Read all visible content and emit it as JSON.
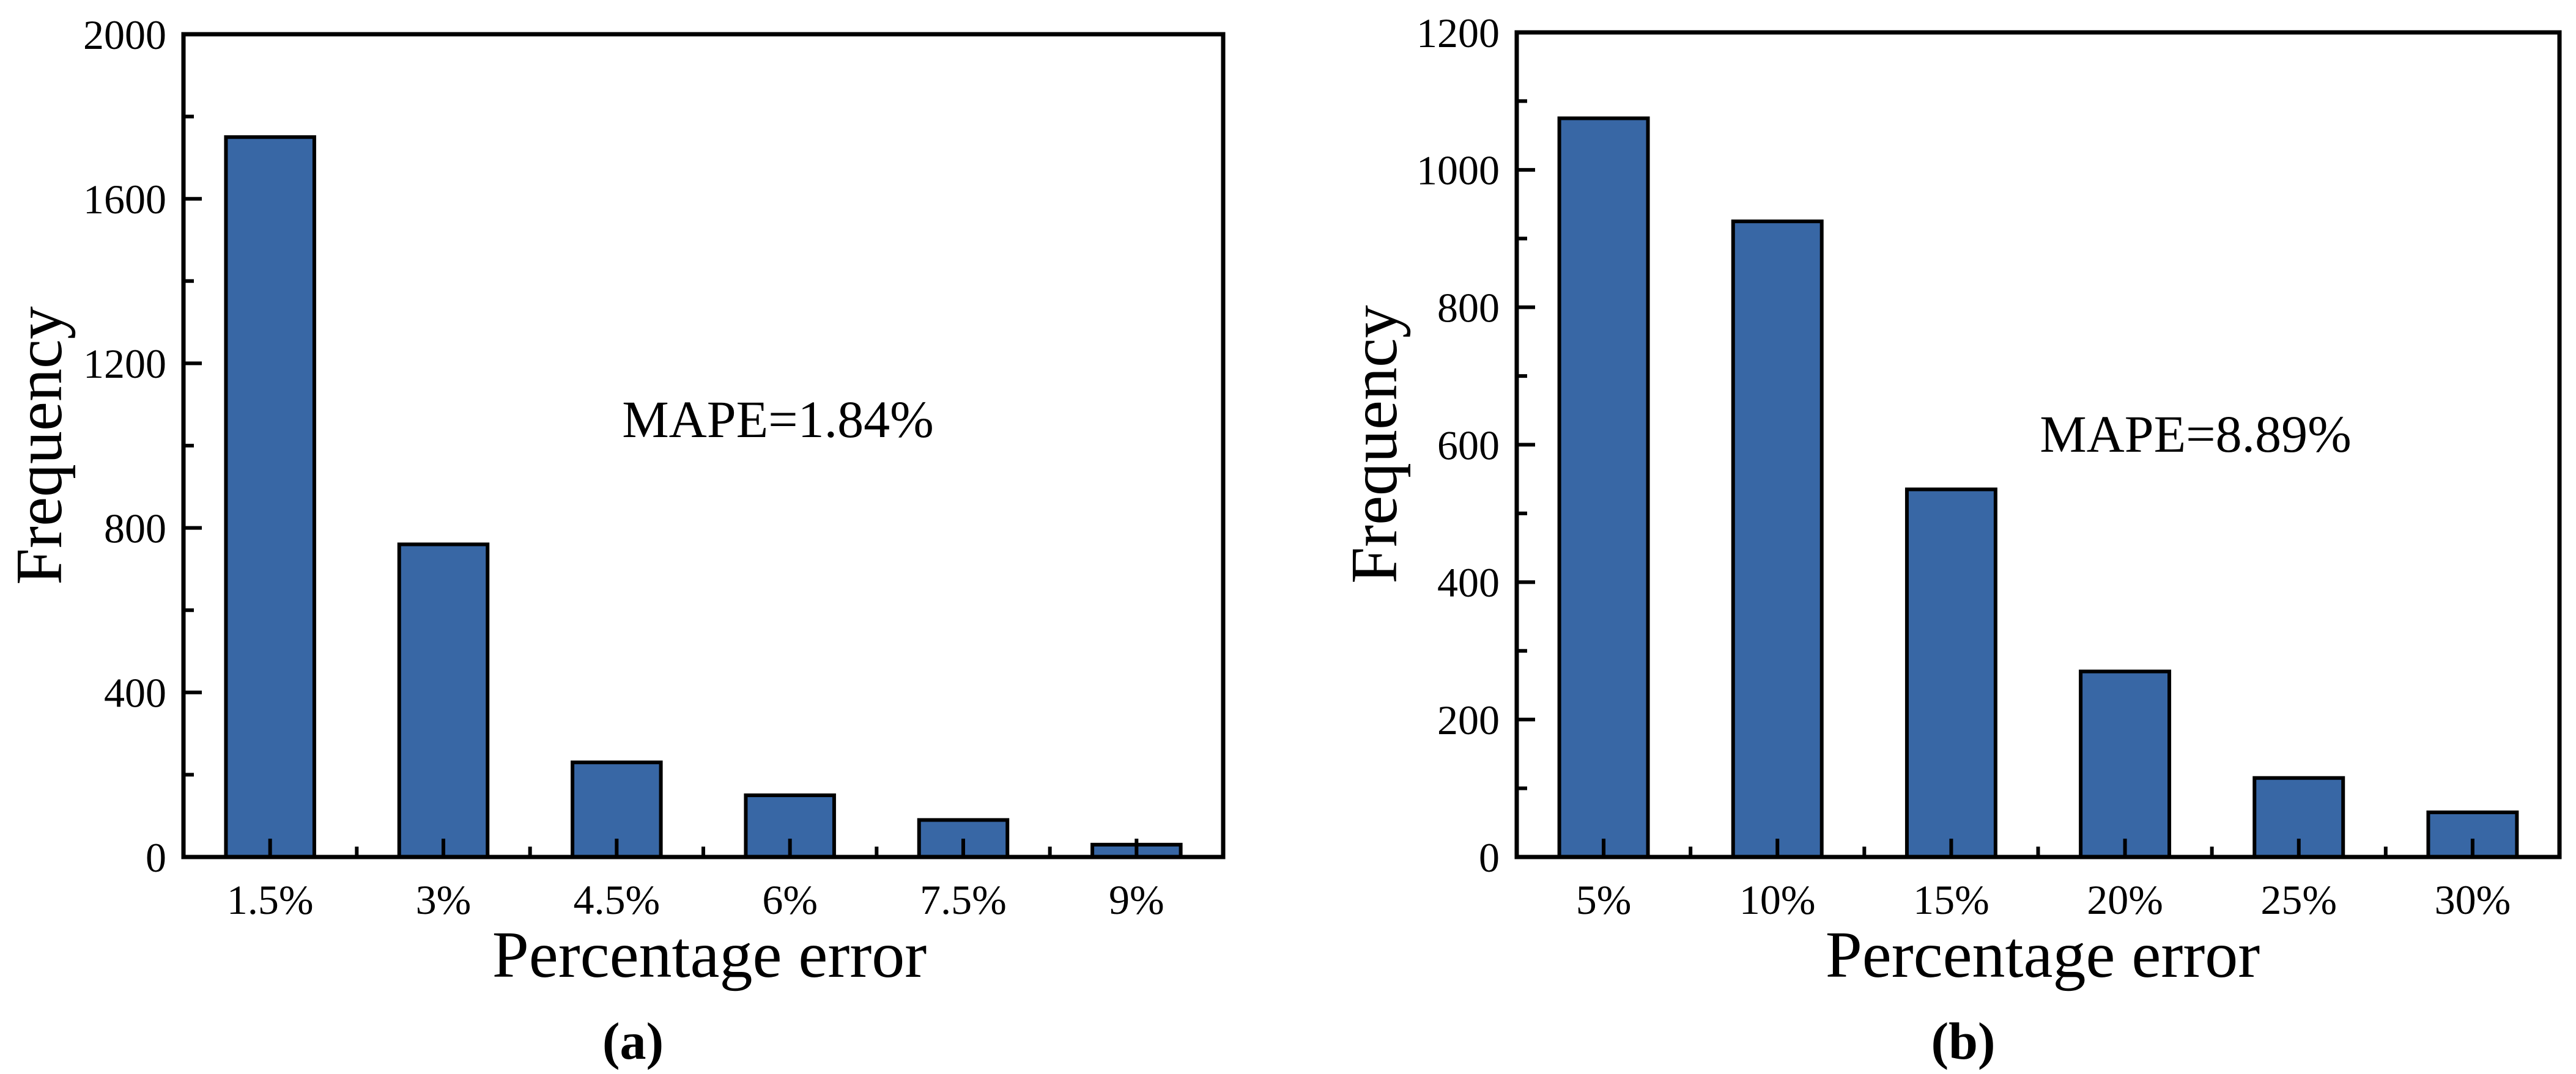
{
  "figure": {
    "background": "#ffffff",
    "description": "Two-panel histogram figure of percentage error frequencies"
  },
  "colors": {
    "bar_fill": "#3867A5",
    "bar_edge": "#000000",
    "axis": "#000000",
    "text": "#000000"
  },
  "chart_data": [
    {
      "type": "bar",
      "panel": "a",
      "caption": "(a)",
      "xlabel": "Percentage error",
      "ylabel": "Frequency",
      "annotation": "MAPE=1.84%",
      "categories": [
        "1.5%",
        "3%",
        "4.5%",
        "6%",
        "7.5%",
        "9%"
      ],
      "values": [
        1750,
        760,
        230,
        150,
        90,
        30
      ],
      "ylim": [
        0,
        2000
      ],
      "ytick_step": 400,
      "ytick_minor_step": 200,
      "yticks": [
        "0",
        "400",
        "800",
        "1200",
        "1600",
        "2000"
      ],
      "grid": false,
      "legend_position": "none"
    },
    {
      "type": "bar",
      "panel": "b",
      "caption": "(b)",
      "xlabel": "Percentage error",
      "ylabel": "Frequency",
      "annotation": "MAPE=8.89%",
      "categories": [
        "5%",
        "10%",
        "15%",
        "20%",
        "25%",
        "30%"
      ],
      "values": [
        1075,
        925,
        535,
        270,
        115,
        65
      ],
      "ylim": [
        0,
        1200
      ],
      "ytick_step": 200,
      "ytick_minor_step": 100,
      "yticks": [
        "0",
        "200",
        "400",
        "600",
        "800",
        "1000",
        "1200"
      ],
      "grid": false,
      "legend_position": "none"
    }
  ]
}
